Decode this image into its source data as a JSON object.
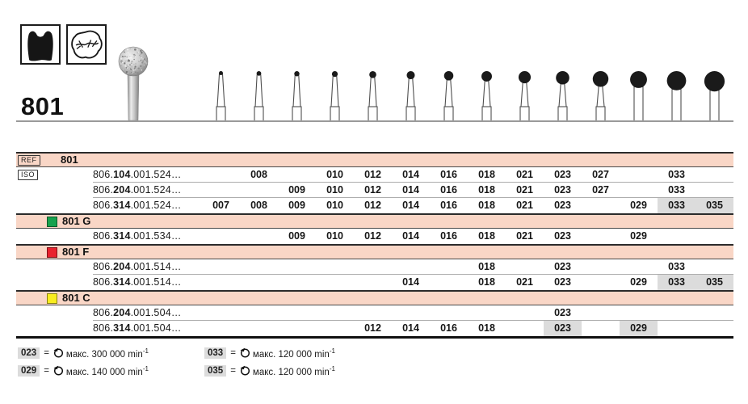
{
  "product": {
    "number": "801"
  },
  "header_icons": [
    "tooth-crown-icon",
    "occlusal-surface-icon"
  ],
  "sizes": [
    "007",
    "008",
    "009",
    "010",
    "012",
    "014",
    "016",
    "018",
    "021",
    "023",
    "027",
    "029",
    "033",
    "035"
  ],
  "colors": {
    "band_pink": "#f9d6c6",
    "highlight_gray": "#dcdcdc",
    "green": "#17a24e",
    "red": "#e8222e",
    "yellow": "#f9ed1f"
  },
  "table": {
    "sections": [
      {
        "band": {
          "badge": "REF",
          "label": "801"
        },
        "rows": [
          {
            "badge": "ISO",
            "code": [
              "806.",
              "104",
              ".001.524…"
            ],
            "available": [
              "008",
              "010",
              "012",
              "014",
              "016",
              "018",
              "021",
              "023",
              "027",
              "033"
            ],
            "highlighted": []
          },
          {
            "code": [
              "806.",
              "204",
              ".001.524…"
            ],
            "available": [
              "009",
              "010",
              "012",
              "014",
              "016",
              "018",
              "021",
              "023",
              "027",
              "033"
            ],
            "highlighted": []
          },
          {
            "code": [
              "806.",
              "314",
              ".001.524…"
            ],
            "available": [
              "007",
              "008",
              "009",
              "010",
              "012",
              "014",
              "016",
              "018",
              "021",
              "023",
              "029",
              "033",
              "035"
            ],
            "highlighted": [
              "033",
              "035"
            ]
          }
        ]
      },
      {
        "band": {
          "square": "#17a24e",
          "label": "801 G"
        },
        "rows": [
          {
            "code": [
              "806.",
              "314",
              ".001.534…"
            ],
            "available": [
              "009",
              "010",
              "012",
              "014",
              "016",
              "018",
              "021",
              "023",
              "029"
            ],
            "highlighted": []
          }
        ]
      },
      {
        "band": {
          "square": "#e8222e",
          "label": "801 F"
        },
        "rows": [
          {
            "code": [
              "806.",
              "204",
              ".001.514…"
            ],
            "available": [
              "018",
              "023",
              "033"
            ],
            "highlighted": []
          },
          {
            "code": [
              "806.",
              "314",
              ".001.514…"
            ],
            "available": [
              "014",
              "018",
              "021",
              "023",
              "029",
              "033",
              "035"
            ],
            "highlighted": [
              "033",
              "035"
            ]
          }
        ]
      },
      {
        "band": {
          "square": "#f9ed1f",
          "label": "801 C"
        },
        "rows": [
          {
            "code": [
              "806.",
              "204",
              ".001.504…"
            ],
            "available": [
              "023"
            ],
            "highlighted": []
          },
          {
            "code": [
              "806.",
              "314",
              ".001.504…"
            ],
            "available": [
              "012",
              "014",
              "016",
              "018",
              "023",
              "029"
            ],
            "highlighted": [
              "023",
              "029"
            ]
          }
        ]
      }
    ]
  },
  "legend": {
    "equals": "=",
    "unit": "min",
    "unit_exponent": "-1",
    "icon": "rotation-direction-icon",
    "items": [
      {
        "size": "023",
        "speed": "макс. 300 000"
      },
      {
        "size": "029",
        "speed": "макс. 140 000"
      },
      {
        "size": "033",
        "speed": "макс. 120 000"
      },
      {
        "size": "035",
        "speed": "макс. 120 000"
      }
    ]
  }
}
